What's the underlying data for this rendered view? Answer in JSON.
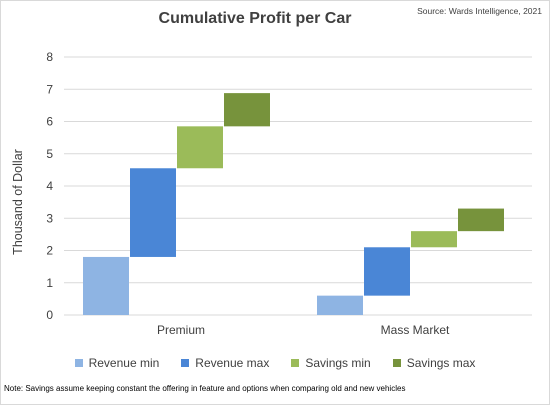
{
  "header": {
    "title": "Cumulative Profit per Car",
    "source": "Source: Wards Intelligence, 2021"
  },
  "footer": {
    "note": "Note: Savings assume keeping constant the offering in feature and options when comparing old and new vehicles"
  },
  "colors": {
    "revenue_min": "#8EB4E3",
    "revenue_max": "#4A86D6",
    "savings_min": "#9BBB59",
    "savings_max": "#77933C",
    "gridline": "#d9d9d9",
    "text": "#404040"
  },
  "legend": [
    {
      "label": "Revenue min",
      "color": "#8EB4E3"
    },
    {
      "label": "Revenue max",
      "color": "#4A86D6"
    },
    {
      "label": "Savings min",
      "color": "#9BBB59"
    },
    {
      "label": "Savings max",
      "color": "#77933C"
    }
  ],
  "chart_data": {
    "type": "bar",
    "subtype": "floating-waterfall",
    "title": "Cumulative Profit per Car",
    "xlabel": "",
    "ylabel": "Thousand of Dollar",
    "ylim": [
      0,
      8
    ],
    "yticks": [
      "0",
      "1",
      "2",
      "3",
      "4",
      "5",
      "6",
      "7",
      "8"
    ],
    "grid": true,
    "legend_position": "bottom",
    "categories": [
      "Premium",
      "Mass Market"
    ],
    "series": [
      {
        "name": "Revenue min",
        "ranges": [
          [
            0,
            1.8
          ],
          [
            0,
            0.6
          ]
        ]
      },
      {
        "name": "Revenue max",
        "ranges": [
          [
            1.8,
            4.55
          ],
          [
            0.6,
            2.1
          ]
        ]
      },
      {
        "name": "Savings min",
        "ranges": [
          [
            4.55,
            5.85
          ],
          [
            2.1,
            2.6
          ]
        ]
      },
      {
        "name": "Savings max",
        "ranges": [
          [
            5.85,
            6.88
          ],
          [
            2.6,
            3.3
          ]
        ]
      }
    ]
  }
}
